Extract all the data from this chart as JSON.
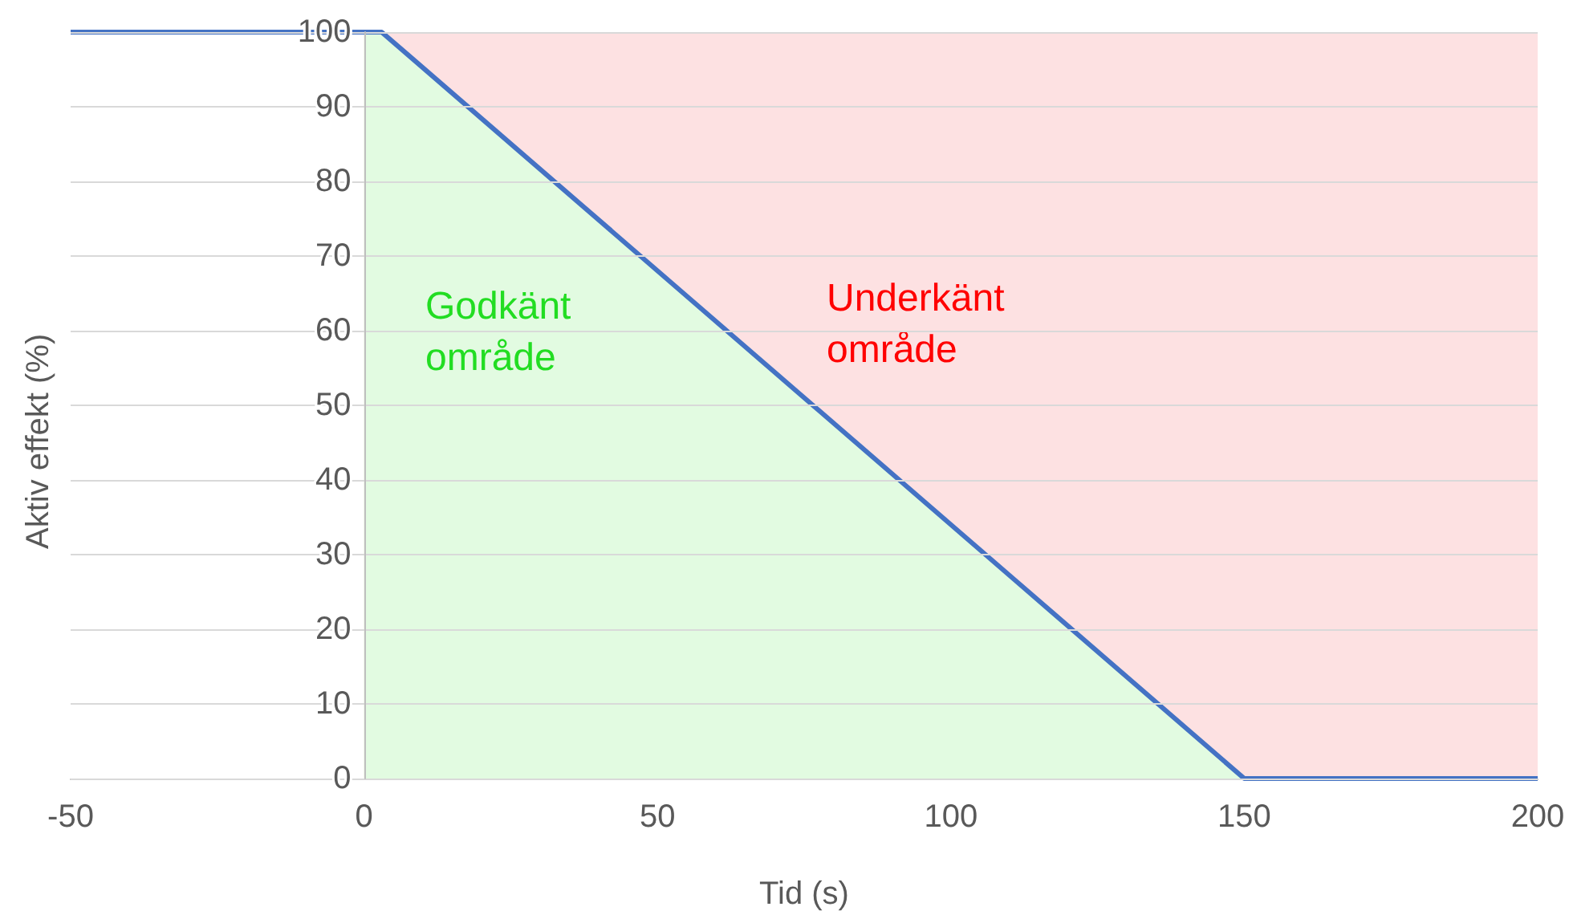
{
  "chart_data": {
    "type": "line",
    "xlabel": "Tid (s)",
    "ylabel": "Aktiv effekt (%)",
    "annotations": [
      "Godkänt område",
      "Underkänt område"
    ],
    "series": [
      {
        "type": "area",
        "color": "#fde1e2",
        "x": [
          0,
          200
        ],
        "values": [
          100,
          100
        ]
      },
      {
        "type": "area",
        "color": "#e2fbe1",
        "x": [
          0,
          3,
          150
        ],
        "values": [
          100,
          100,
          0
        ]
      },
      {
        "type": "line",
        "color": "#4472c4",
        "x": [
          -50,
          3,
          150,
          200
        ],
        "values": [
          100,
          100,
          0,
          0
        ]
      }
    ],
    "xlim": [
      -50,
      200
    ],
    "xticks": [
      -50,
      0,
      50,
      100,
      150,
      200
    ],
    "ylim": [
      0,
      100
    ],
    "yticks": [
      0,
      10,
      20,
      30,
      40,
      50,
      60,
      70,
      80,
      90,
      100
    ],
    "grid": "y",
    "marker": "none",
    "line_style": "solid"
  }
}
